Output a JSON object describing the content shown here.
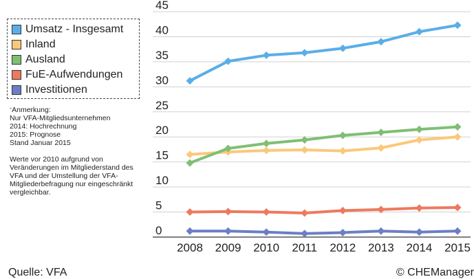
{
  "chart_data": {
    "type": "line",
    "title": "",
    "xlabel": "",
    "ylabel": "",
    "x": [
      "2008",
      "2009",
      "2010",
      "2011",
      "2012",
      "2013",
      "2014",
      "2015"
    ],
    "ylim": [
      0,
      45
    ],
    "yticks": [
      "0",
      "5",
      "10",
      "15",
      "20",
      "25",
      "30",
      "35",
      "40",
      "45"
    ],
    "grid": "horizontal",
    "legend_position": "top-left",
    "series": [
      {
        "name": "Umsatz - Insgesamt",
        "color": "#5aaee8",
        "values": [
          31.2,
          35.1,
          36.3,
          36.8,
          37.7,
          39.0,
          41.0,
          42.3
        ]
      },
      {
        "name": "Inland",
        "color": "#fbc87a",
        "values": [
          16.5,
          17.0,
          17.3,
          17.4,
          17.2,
          17.8,
          19.4,
          20.0
        ]
      },
      {
        "name": "Ausland",
        "color": "#7fbf73",
        "values": [
          14.8,
          17.7,
          18.7,
          19.4,
          20.3,
          20.9,
          21.5,
          22.0
        ]
      },
      {
        "name": "FuE-Aufwendungen",
        "color": "#ed7a5e",
        "values": [
          5.0,
          5.1,
          5.0,
          4.8,
          5.3,
          5.5,
          5.8,
          5.9
        ]
      },
      {
        "name": "Investitionen",
        "color": "#6b7fc4",
        "values": [
          1.2,
          1.2,
          1.0,
          0.7,
          0.9,
          1.2,
          1.0,
          1.2
        ]
      }
    ]
  },
  "note": {
    "marker": "*",
    "heading": "Anmerkung:",
    "lines": "Nur VFA-Mitgliedsunternehmen\n2014: Hochrechnung\n2015: Prognose\nStand Januar 2015",
    "paragraph": "Werte vor 2010 aufgrund von Veränderungen im Mitgliederstand des VFA und der Umstellung der VFA-Mitgliederbefragung nur eingeschränkt vergleichbar."
  },
  "footer": {
    "source": "Quelle: VFA",
    "copyright": "© CHEManager"
  }
}
